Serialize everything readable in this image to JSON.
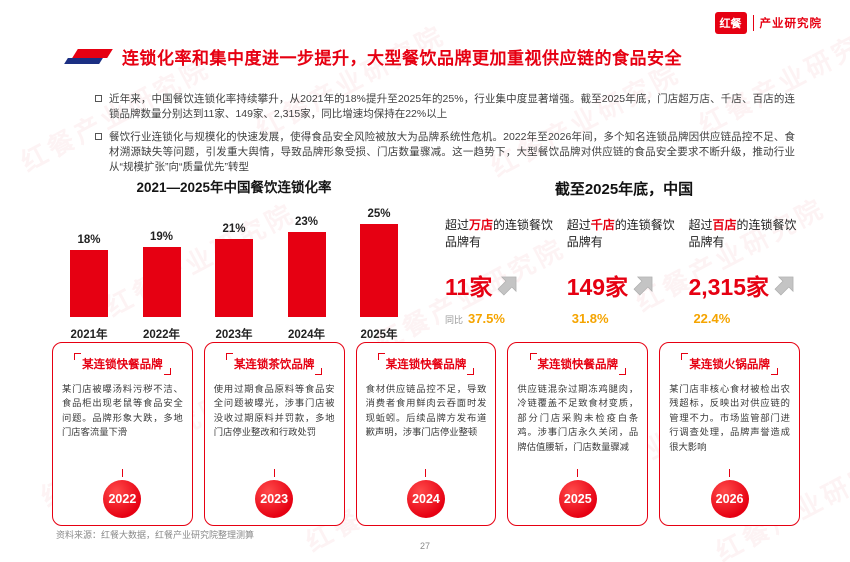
{
  "logo": {
    "brand": "红餐",
    "sub": "产业研究院"
  },
  "header": {
    "title": "连锁化率和集中度进一步提升，大型餐饮品牌更加重视供应链的食品安全"
  },
  "bullets": [
    "近年来，中国餐饮连锁化率持续攀升，从2021年的18%提升至2025年的25%，行业集中度显著增强。截至2025年底，门店超万店、千店、百店的连锁品牌数量分别达到11家、149家、2,315家，同比增速均保持在22%以上",
    "餐饮行业连锁化与规模化的快速发展，使得食品安全风险被放大为品牌系统性危机。2022年至2026年间，多个知名连锁品牌因供应链品控不足、食材溯源缺失等问题，引发重大舆情，导致品牌形象受损、门店数量骤减。这一趋势下，大型餐饮品牌对供应链的食品安全要求不断升级，推动行业从“规模扩张”向“质量优先”转型"
  ],
  "chart_data": {
    "type": "bar",
    "title": "2021—2025年中国餐饮连锁化率",
    "categories": [
      "2021年",
      "2022年",
      "2023年",
      "2024年",
      "2025年"
    ],
    "values": [
      18,
      19,
      21,
      23,
      25
    ],
    "value_suffix": "%",
    "xlabel": "",
    "ylabel": "连锁化率",
    "ylim": [
      0,
      25
    ],
    "bar_color": "#e60012",
    "grid": false,
    "legend": false
  },
  "stats": {
    "heading": "截至2025年底，中国",
    "items": [
      {
        "prefix": "超过",
        "highlight": "万店",
        "suffix": "的连锁餐饮品牌有",
        "value": "11家",
        "growth_label": "同比",
        "growth": "37.5%"
      },
      {
        "prefix": "超过",
        "highlight": "千店",
        "suffix": "的连锁餐饮品牌有",
        "value": "149家",
        "growth_label": "",
        "growth": "31.8%"
      },
      {
        "prefix": "超过",
        "highlight": "百店",
        "suffix": "的连锁餐饮品牌有",
        "value": "2,315家",
        "growth_label": "",
        "growth": "22.4%"
      }
    ]
  },
  "cases": [
    {
      "title": "某连锁快餐品牌",
      "text": "某门店被曝汤料污秽不洁、食品柜出现老鼠等食品安全问题。品牌形象大跌，多地门店客流量下滑",
      "year": "2022"
    },
    {
      "title": "某连锁茶饮品牌",
      "text": "使用过期食品原料等食品安全问题被曝光，涉事门店被没收过期原料并罚款，多地门店停业整改和行政处罚",
      "year": "2023"
    },
    {
      "title": "某连锁快餐品牌",
      "text": "食材供应链品控不足，导致消费者食用鲜肉云吞面时发现蚯蚓。后续品牌方发布道歉声明，涉事门店停业整顿",
      "year": "2024"
    },
    {
      "title": "某连锁快餐品牌",
      "text": "供应链混杂过期冻鸡腿肉，冷链覆盖不足致食材变质，部分门店采购未检疫白条鸡。涉事门店永久关闭，品牌估值腰斩，门店数量骤减",
      "year": "2025"
    },
    {
      "title": "某连锁火锅品牌",
      "text": "某门店非核心食材被检出农残超标，反映出对供应链的管理不力。市场监管部门进行调查处理，品牌声誉造成很大影响",
      "year": "2026"
    }
  ],
  "footer": {
    "source": "资料来源：红餐大数据，红餐产业研究院整理测算",
    "page": "27"
  },
  "watermark": {
    "text": "红餐产业研究院"
  },
  "colors": {
    "brand_red": "#e60012",
    "accent_blue": "#1b2f83",
    "growth_orange": "#f5a400",
    "arrow_gray": "#c4c4c4"
  }
}
